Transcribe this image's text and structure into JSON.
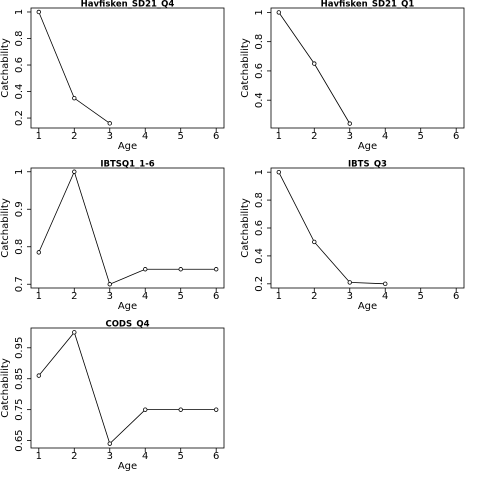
{
  "chart_data": [
    {
      "type": "line",
      "title": "Havfisken_SD21_Q4",
      "x_label": "Age",
      "y_label": "Catchability",
      "color": "#000000",
      "x": [
        1,
        2,
        3
      ],
      "values": [
        1.0,
        0.35,
        0.16
      ],
      "xlim": [
        0.78,
        6.22
      ],
      "xticks": [
        1,
        2,
        3,
        4,
        5,
        6
      ],
      "ylim": [
        0.125,
        1.03
      ],
      "yticks": [
        0.2,
        0.4,
        0.6,
        0.8,
        1.0
      ]
    },
    {
      "type": "line",
      "title": "Havfisken_SD21_Q1",
      "x_label": "Age",
      "y_label": "Catchability",
      "color": "#000000",
      "x": [
        1,
        2,
        3
      ],
      "values": [
        1.0,
        0.65,
        0.24
      ],
      "xlim": [
        0.78,
        6.22
      ],
      "xticks": [
        1,
        2,
        3,
        4,
        5,
        6
      ],
      "ylim": [
        0.21,
        1.03
      ],
      "yticks": [
        0.4,
        0.6,
        0.8,
        1.0
      ]
    },
    {
      "type": "line",
      "title": "IBTSQ1_1-6",
      "x_label": "Age",
      "y_label": "Catchability",
      "color": "#000000",
      "x": [
        1,
        2,
        3,
        4,
        5,
        6
      ],
      "values": [
        0.785,
        1.0,
        0.7,
        0.74,
        0.74,
        0.74
      ],
      "xlim": [
        0.78,
        6.22
      ],
      "xticks": [
        1,
        2,
        3,
        4,
        5,
        6
      ],
      "ylim": [
        0.69,
        1.01
      ],
      "yticks": [
        0.7,
        0.8,
        0.9,
        1.0
      ]
    },
    {
      "type": "line",
      "title": "IBTS_Q3",
      "x_label": "Age",
      "y_label": "Catchability",
      "color": "#000000",
      "x": [
        1,
        2,
        3,
        4
      ],
      "values": [
        1.0,
        0.5,
        0.21,
        0.2
      ],
      "xlim": [
        0.78,
        6.22
      ],
      "xticks": [
        1,
        2,
        3,
        4,
        5,
        6
      ],
      "ylim": [
        0.17,
        1.03
      ],
      "yticks": [
        0.2,
        0.4,
        0.6,
        0.8,
        1.0
      ]
    },
    {
      "type": "line",
      "title": "CODS_Q4",
      "x_label": "Age",
      "y_label": "Catchability",
      "color": "#000000",
      "x": [
        1,
        2,
        3,
        4,
        5,
        6
      ],
      "values": [
        0.86,
        1.0,
        0.64,
        0.75,
        0.75,
        0.75
      ],
      "xlim": [
        0.78,
        6.22
      ],
      "xticks": [
        1,
        2,
        3,
        4,
        5,
        6
      ],
      "ylim": [
        0.626,
        1.014
      ],
      "yticks": [
        0.65,
        0.75,
        0.85,
        0.95
      ]
    }
  ]
}
